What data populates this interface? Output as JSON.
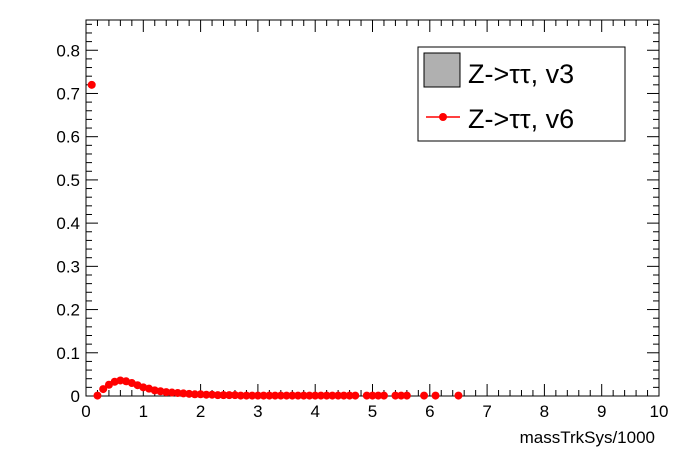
{
  "chart_data": {
    "type": "scatter",
    "xlabel": "massTrkSys/1000",
    "ylabel": "",
    "xlim": [
      0,
      10
    ],
    "ylim": [
      0,
      0.87
    ],
    "x_ticks": [
      "0",
      "1",
      "2",
      "3",
      "4",
      "5",
      "6",
      "7",
      "8",
      "9",
      "10"
    ],
    "y_ticks": [
      "0",
      "0.1",
      "0.2",
      "0.3",
      "0.4",
      "0.5",
      "0.6",
      "0.7",
      "0.8"
    ],
    "legend_position": "top-right",
    "grid": false,
    "series": [
      {
        "name": "Z->ττ, v3",
        "style": "filled-histogram",
        "color": "#b0b0b0",
        "x": [],
        "y": []
      },
      {
        "name": "Z->ττ, v6",
        "style": "markers",
        "color": "#ff0000",
        "x": [
          0.1,
          0.2,
          0.3,
          0.4,
          0.5,
          0.6,
          0.7,
          0.8,
          0.9,
          1.0,
          1.1,
          1.2,
          1.3,
          1.4,
          1.5,
          1.6,
          1.7,
          1.8,
          1.9,
          2.0,
          2.1,
          2.2,
          2.3,
          2.4,
          2.5,
          2.6,
          2.7,
          2.8,
          2.9,
          3.0,
          3.1,
          3.2,
          3.3,
          3.4,
          3.5,
          3.6,
          3.7,
          3.8,
          3.9,
          4.0,
          4.1,
          4.2,
          4.3,
          4.4,
          4.5,
          4.6,
          4.7,
          4.9,
          5.0,
          5.1,
          5.2,
          5.4,
          5.5,
          5.6,
          5.9,
          6.1,
          6.5
        ],
        "y": [
          0.72,
          0.001,
          0.016,
          0.026,
          0.033,
          0.036,
          0.034,
          0.03,
          0.025,
          0.02,
          0.017,
          0.013,
          0.011,
          0.009,
          0.008,
          0.007,
          0.006,
          0.005,
          0.004,
          0.004,
          0.003,
          0.003,
          0.002,
          0.002,
          0.002,
          0.002,
          0.001,
          0.001,
          0.001,
          0.001,
          0.001,
          0.001,
          0.001,
          0.001,
          0.001,
          0.001,
          0.001,
          0.001,
          0.001,
          0.001,
          0.001,
          0.001,
          0.001,
          0.001,
          0.001,
          0.001,
          0.001,
          0.001,
          0.001,
          0.001,
          0.001,
          0.001,
          0.001,
          0.001,
          0.001,
          0.001,
          0.001
        ]
      }
    ]
  }
}
